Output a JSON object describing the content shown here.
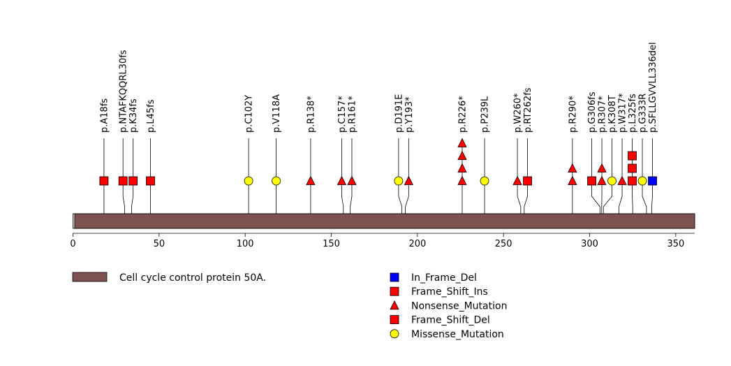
{
  "chart_data": {
    "type": "lollipop",
    "xlim": [
      0,
      361
    ],
    "ticks": [
      0,
      50,
      100,
      150,
      200,
      250,
      300,
      350
    ],
    "domains": [
      {
        "name": "Cell cycle control protein 50A.",
        "start": 1,
        "end": 361,
        "color": "#7f5252"
      }
    ],
    "legend": [
      {
        "label": "In_Frame_Del",
        "shape": "square",
        "color": "#0000ff"
      },
      {
        "label": "Frame_Shift_Ins",
        "shape": "square",
        "color": "#ff0000"
      },
      {
        "label": "Nonsense_Mutation",
        "shape": "triangle",
        "color": "#ff0000"
      },
      {
        "label": "Frame_Shift_Del",
        "shape": "square",
        "color": "#ff0000"
      },
      {
        "label": "Missense_Mutation",
        "shape": "circle",
        "color": "#ffff00"
      }
    ],
    "mutations": [
      {
        "label": "p.A18fs",
        "pos": 18,
        "count": 1,
        "shape": "square",
        "color": "#ff0000"
      },
      {
        "label": "p.NTAFKQQRL30fs",
        "pos": 30,
        "count": 1,
        "shape": "square",
        "color": "#ff0000"
      },
      {
        "label": "p.K34fs",
        "pos": 34,
        "count": 1,
        "shape": "square",
        "color": "#ff0000"
      },
      {
        "label": "p.L45fs",
        "pos": 45,
        "count": 1,
        "shape": "square",
        "color": "#ff0000"
      },
      {
        "label": "p.C102Y",
        "pos": 102,
        "count": 1,
        "shape": "circle",
        "color": "#ffff00"
      },
      {
        "label": "p.V118A",
        "pos": 118,
        "count": 1,
        "shape": "circle",
        "color": "#ffff00"
      },
      {
        "label": "p.R138*",
        "pos": 138,
        "count": 1,
        "shape": "triangle",
        "color": "#ff0000"
      },
      {
        "label": "p.C157*",
        "pos": 157,
        "count": 1,
        "shape": "triangle",
        "color": "#ff0000"
      },
      {
        "label": "p.R161*",
        "pos": 161,
        "count": 1,
        "shape": "triangle",
        "color": "#ff0000"
      },
      {
        "label": "p.D191E",
        "pos": 191,
        "count": 1,
        "shape": "circle",
        "color": "#ffff00"
      },
      {
        "label": "p.Y193*",
        "pos": 193,
        "count": 1,
        "shape": "triangle",
        "color": "#ff0000"
      },
      {
        "label": "p.R226*",
        "pos": 226,
        "count": 4,
        "shape": "triangle",
        "color": "#ff0000"
      },
      {
        "label": "p.P239L",
        "pos": 239,
        "count": 1,
        "shape": "circle",
        "color": "#ffff00"
      },
      {
        "label": "p.W260*",
        "pos": 260,
        "count": 1,
        "shape": "triangle",
        "color": "#ff0000"
      },
      {
        "label": "p.RT262fs",
        "pos": 262,
        "count": 1,
        "shape": "square",
        "color": "#ff0000"
      },
      {
        "label": "p.R290*",
        "pos": 290,
        "count": 2,
        "shape": "triangle",
        "color": "#ff0000"
      },
      {
        "label": "p.G306fs",
        "pos": 306,
        "count": 1,
        "shape": "square",
        "color": "#ff0000"
      },
      {
        "label": "p.R307*",
        "pos": 307,
        "count": 2,
        "shape": "triangle",
        "color": "#ff0000"
      },
      {
        "label": "p.K308T",
        "pos": 308,
        "count": 1,
        "shape": "circle",
        "color": "#ffff00"
      },
      {
        "label": "p.W317*",
        "pos": 317,
        "count": 1,
        "shape": "triangle",
        "color": "#ff0000"
      },
      {
        "label": "p.L325fs",
        "pos": 325,
        "count": 3,
        "shape": "square",
        "color": "#ff0000"
      },
      {
        "label": "p.G333R",
        "pos": 333,
        "count": 1,
        "shape": "circle",
        "color": "#ffff00"
      },
      {
        "label": "p.SFLLGVVLL336del",
        "pos": 336,
        "count": 1,
        "shape": "square",
        "color": "#0000ff"
      }
    ]
  }
}
